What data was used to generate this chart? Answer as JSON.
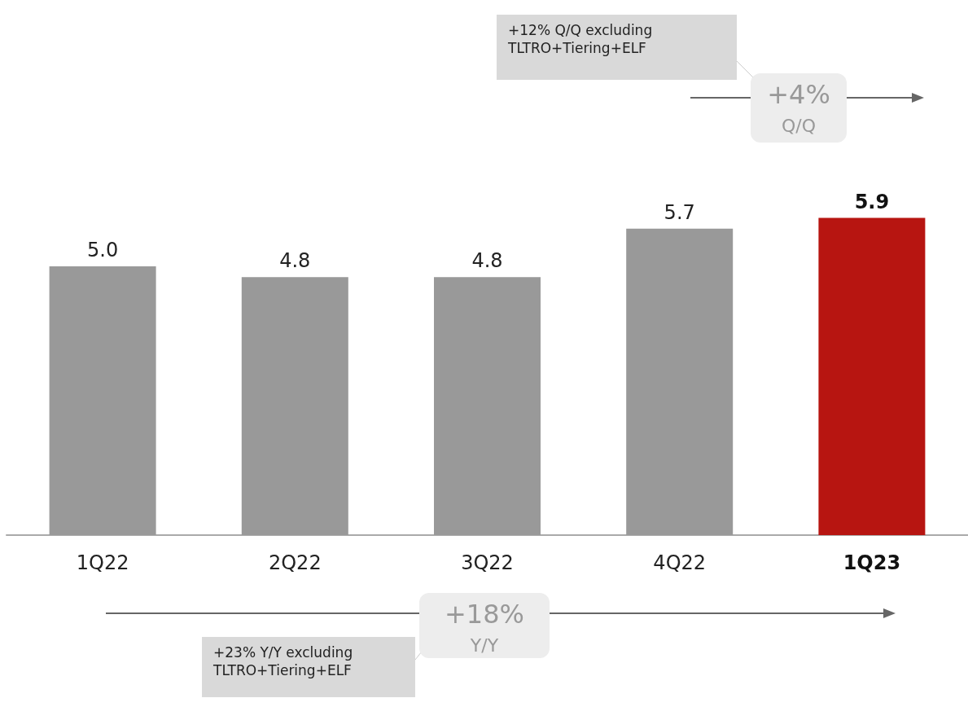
{
  "chart_data": {
    "type": "bar",
    "categories": [
      "1Q22",
      "2Q22",
      "3Q22",
      "4Q22",
      "1Q23"
    ],
    "values": [
      5.0,
      4.8,
      4.8,
      5.7,
      5.9
    ],
    "colors": [
      "#999999",
      "#999999",
      "#999999",
      "#999999",
      "#b71511"
    ],
    "value_labels": [
      "5.0",
      "4.8",
      "4.8",
      "5.7",
      "5.9"
    ],
    "annotations": [
      "+12% Q/Q excluding\nTLTRO+Tiering+ELF",
      "+4%\nQ/Q",
      "+18%\nY/Y",
      "+23% Y/Y excluding\nTLTRO+Tiering+ELF"
    ]
  }
}
